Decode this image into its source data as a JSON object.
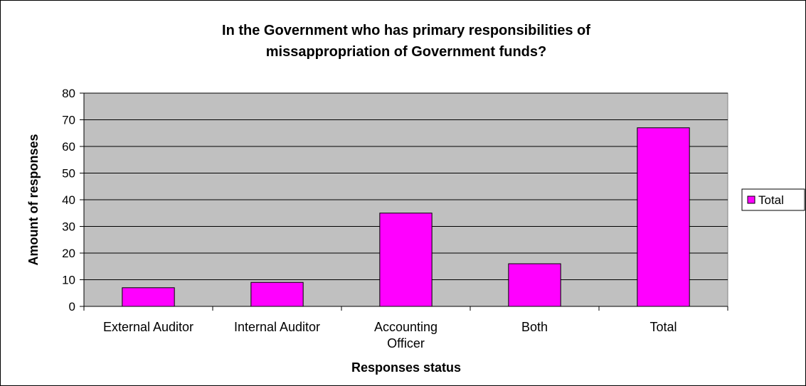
{
  "chart_data": {
    "type": "bar",
    "title": "In the Government who has primary responsibilities of missappropriation of Government funds?",
    "title_lines": [
      "In the Government who has primary responsibilities of",
      "missappropriation of Government funds?"
    ],
    "categories": [
      "External Auditor",
      "Internal Auditor",
      "Accounting Officer",
      "Both",
      "Total"
    ],
    "category_lines": [
      [
        "External Auditor"
      ],
      [
        "Internal Auditor"
      ],
      [
        "Accounting",
        "Officer"
      ],
      [
        "Both"
      ],
      [
        "Total"
      ]
    ],
    "series": [
      {
        "name": "Total",
        "values": [
          7,
          9,
          35,
          16,
          67
        ]
      }
    ],
    "xlabel": "Responses status",
    "ylabel": "Amount of responses",
    "ylim": [
      0,
      80
    ],
    "yticks": [
      0,
      10,
      20,
      30,
      40,
      50,
      60,
      70,
      80
    ],
    "grid": true,
    "legend_position": "right",
    "colors": {
      "bar_fill": "#ff00ff",
      "plot_background": "#c0c0c0",
      "gridline": "#000000",
      "axis": "#000000"
    }
  }
}
